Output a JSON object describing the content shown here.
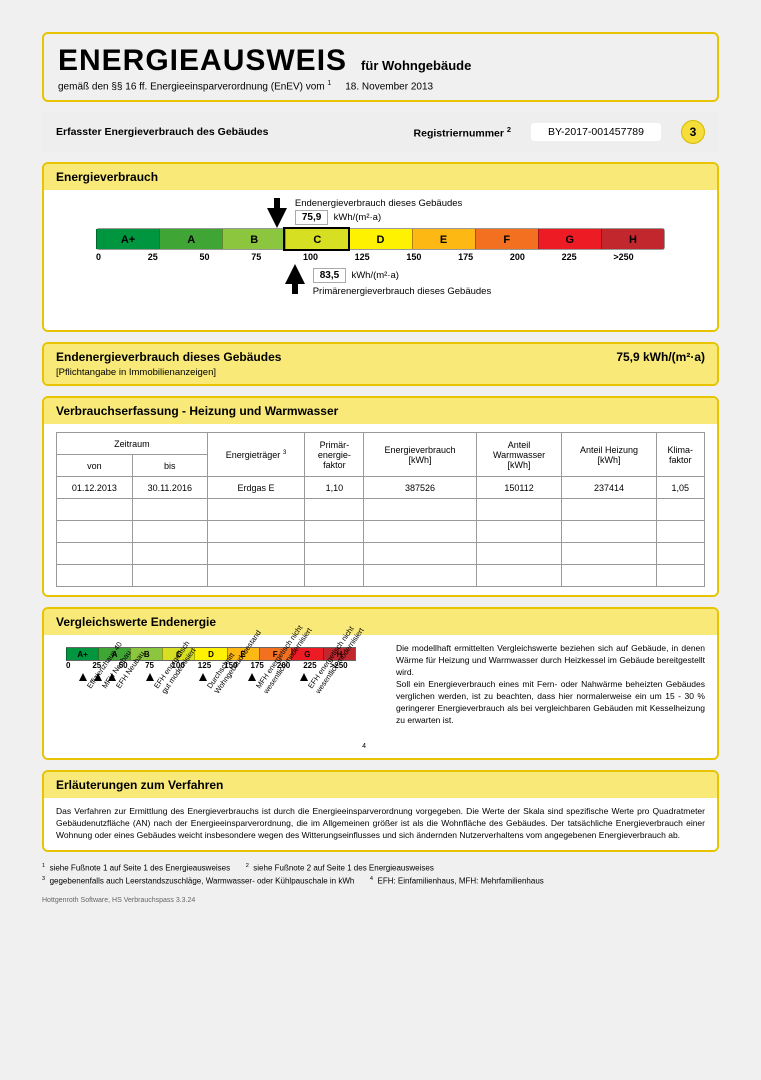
{
  "header": {
    "title": "ENERGIEAUSWEIS",
    "subtitle": "für Wohngebäude",
    "regulation_prefix": "gemäß den §§ 16 ff. Energieeinsparverordnung (EnEV) vom",
    "regulation_sup": "1",
    "regulation_date": "18. November 2013"
  },
  "meta": {
    "scope_label": "Erfasster Energieverbrauch des Gebäudes",
    "reg_label": "Registriernummer",
    "reg_sup": "2",
    "reg_value": "BY-2017-001457789",
    "page_number": "3"
  },
  "consumption": {
    "section_title": "Energieverbrauch",
    "top_arrow_label": "Endenergieverbrauch dieses Gebäudes",
    "bottom_arrow_label": "Primärenergieverbrauch dieses Gebäudes",
    "end_value": "75,9",
    "primary_value": "83,5",
    "unit": "kWh/(m²·a)",
    "end_letter": "C",
    "end_position_pct": 30.4,
    "primary_position_pct": 33.4,
    "scale": {
      "classes": [
        "A+",
        "A",
        "B",
        "C",
        "D",
        "E",
        "F",
        "G",
        "H"
      ],
      "ticks": [
        "0",
        "25",
        "50",
        "75",
        "100",
        "125",
        "150",
        "175",
        "200",
        "225",
        ">250"
      ],
      "colors": [
        "#009640",
        "#3fa535",
        "#8cc63f",
        "#d7df23",
        "#fff200",
        "#fdb813",
        "#f37021",
        "#ed1c24",
        "#c1272d"
      ]
    }
  },
  "end_energy_row": {
    "title": "Endenergieverbrauch dieses Gebäudes",
    "subtitle": "[Pflichtangabe in Immobilienanzeigen]",
    "value": "75,9 kWh/(m²·a)"
  },
  "measurement": {
    "section_title": "Verbrauchserfassung - Heizung und Warmwasser",
    "columns": {
      "period": "Zeitraum",
      "from": "von",
      "to": "bis",
      "carrier": "Energieträger",
      "carrier_sup": "3",
      "primary_factor": "Primär-\nenergie-\nfaktor",
      "consumption": "Energieverbrauch\n[kWh]",
      "hot_water": "Anteil\nWarmwasser\n[kWh]",
      "heating": "Anteil Heizung\n[kWh]",
      "climate": "Klima-\nfaktor"
    },
    "rows": [
      {
        "from": "01.12.2013",
        "to": "30.11.2016",
        "carrier": "Erdgas E",
        "primary_factor": "1,10",
        "consumption": "387526",
        "hot_water": "150112",
        "heating": "237414",
        "climate": "1,05"
      }
    ],
    "empty_rows": 4
  },
  "comparison": {
    "section_title": "Vergleichswerte Endenergie",
    "scale": {
      "classes": [
        "A+",
        "A",
        "B",
        "C",
        "D",
        "E",
        "F",
        "G",
        "H"
      ],
      "ticks": [
        "0",
        "25",
        "50",
        "75",
        "100",
        "125",
        "150",
        "175",
        "200",
        "225",
        ">250"
      ],
      "colors": [
        "#009640",
        "#3fa535",
        "#8cc63f",
        "#d7df23",
        "#fff200",
        "#fdb813",
        "#f37021",
        "#ed1c24",
        "#c1272d"
      ]
    },
    "markers": [
      {
        "label": "Effizienzhaus 40",
        "pos": 15
      },
      {
        "label": "MFH Neubau",
        "pos": 28
      },
      {
        "label": "EFH Neubau",
        "pos": 40
      },
      {
        "label": "EFH energetisch\ngut modernisiert",
        "pos": 72
      },
      {
        "label": "Durchschnitt\nWohngebäudebestand",
        "pos": 118
      },
      {
        "label": "MFH energetisch nicht\nwesentlich modernisiert",
        "pos": 160
      },
      {
        "label": "EFH energetisch nicht\nwesentlich modernisiert",
        "pos": 205
      }
    ],
    "paragraph": "Die modellhaft ermittelten Vergleichswerte beziehen sich auf Gebäude, in denen Wärme für Heizung und Warmwasser durch Heizkessel im Gebäude bereitgestellt wird.\nSoll ein Energieverbrauch eines mit Fern- oder Nahwärme beheizten Gebäudes verglichen werden, ist zu beachten, dass hier normalerweise ein um 15 - 30 % geringerer Energieverbrauch als bei vergleichbaren Gebäuden mit Kesselheizung zu erwarten ist.",
    "footnote_ref": "4"
  },
  "explanation": {
    "section_title": "Erläuterungen zum Verfahren",
    "text": "Das Verfahren zur Ermittlung des Energieverbrauchs ist durch die Energieeinsparverordnung vorgegeben. Die Werte der Skala sind spezifische Werte pro Quadratmeter Gebäudenutzfläche (AN) nach der Energieeinsparverordnung, die im Allgemeinen größer ist als die Wohnfläche des Gebäudes. Der tatsächliche Energieverbrauch einer Wohnung oder eines Gebäudes weicht insbesondere wegen des Witterungseinflusses und sich ändernden Nutzerverhaltens vom angegebenen Energieverbrauch ab."
  },
  "footnotes": {
    "f1": "siehe Fußnote 1 auf Seite 1 des Energieausweises",
    "f2": "siehe Fußnote 2 auf Seite 1 des Energieausweises",
    "f3": "gegebenenfalls auch Leerstandszuschläge, Warmwasser- oder Kühlpauschale in kWh",
    "f4": "EFH: Einfamilienhaus, MFH: Mehrfamilienhaus"
  },
  "software": "Hottgenroth Software, HS Verbrauchspass 3.3.24"
}
